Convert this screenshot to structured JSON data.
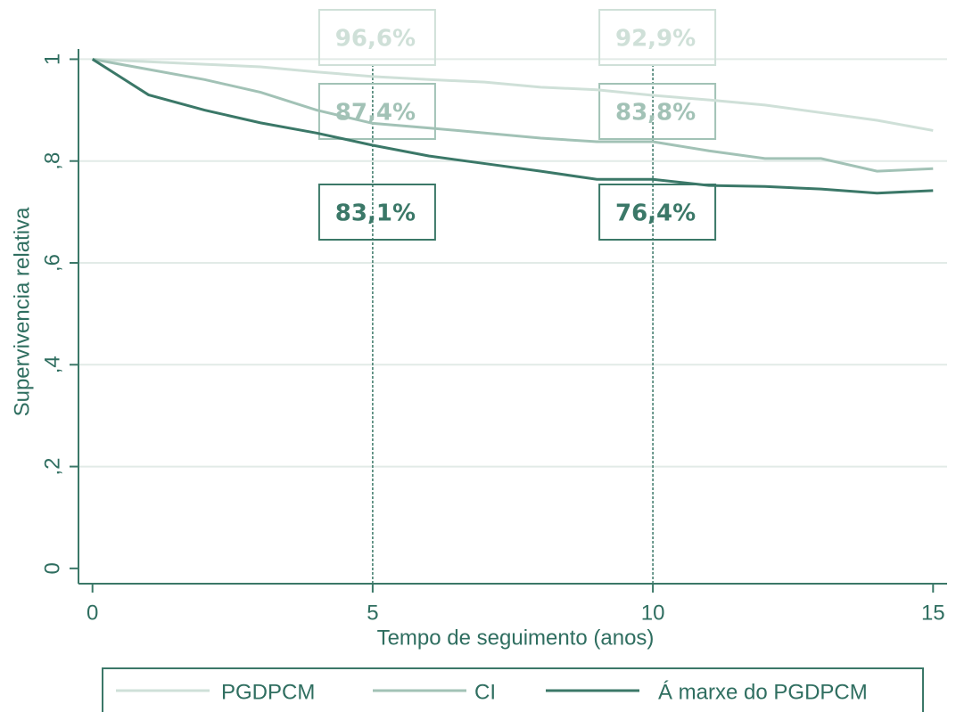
{
  "chart_data": {
    "type": "line",
    "x_label": "Tempo de seguimento (anos)",
    "y_label": "Supervivencia relativa",
    "x": [
      0,
      1,
      2,
      3,
      4,
      5,
      6,
      7,
      8,
      9,
      10,
      11,
      12,
      13,
      14,
      15
    ],
    "series": [
      {
        "name": "PGDPCM",
        "color": "#cfe0d8",
        "values": [
          1,
          0.995,
          0.99,
          0.985,
          0.975,
          0.966,
          0.96,
          0.955,
          0.945,
          0.94,
          0.929,
          0.92,
          0.91,
          0.895,
          0.88,
          0.86
        ]
      },
      {
        "name": "CI",
        "color": "#a2c2b6",
        "values": [
          1,
          0.98,
          0.96,
          0.935,
          0.9,
          0.874,
          0.865,
          0.855,
          0.845,
          0.838,
          0.838,
          0.82,
          0.805,
          0.805,
          0.78,
          0.785
        ]
      },
      {
        "name": "Á marxe do PGDPCM",
        "color": "#3b7868",
        "values": [
          1,
          0.93,
          0.9,
          0.875,
          0.855,
          0.831,
          0.81,
          0.795,
          0.78,
          0.764,
          0.764,
          0.752,
          0.75,
          0.745,
          0.737,
          0.742
        ]
      }
    ],
    "xlim": [
      -0.25,
      15.25
    ],
    "xticks": [
      0,
      5,
      10,
      15
    ],
    "ylim": [
      -0.03,
      1.02
    ],
    "yticks": [
      0,
      {
        "value": 0.2,
        "label": ",2"
      },
      {
        "value": 0.4,
        "label": ",4"
      },
      {
        "value": 0.6,
        "label": ",6"
      },
      {
        "value": 0.8,
        "label": ",8"
      },
      1
    ],
    "grid": true,
    "annotations": [
      {
        "text": "96,6%",
        "x": 5
      },
      {
        "text": "87,4%",
        "x": 5
      },
      {
        "text": "83,1%",
        "x": 5
      },
      {
        "text": "92,9%",
        "x": 10
      },
      {
        "text": "83,8%",
        "x": 10
      },
      {
        "text": "76,4%",
        "x": 10
      }
    ]
  }
}
